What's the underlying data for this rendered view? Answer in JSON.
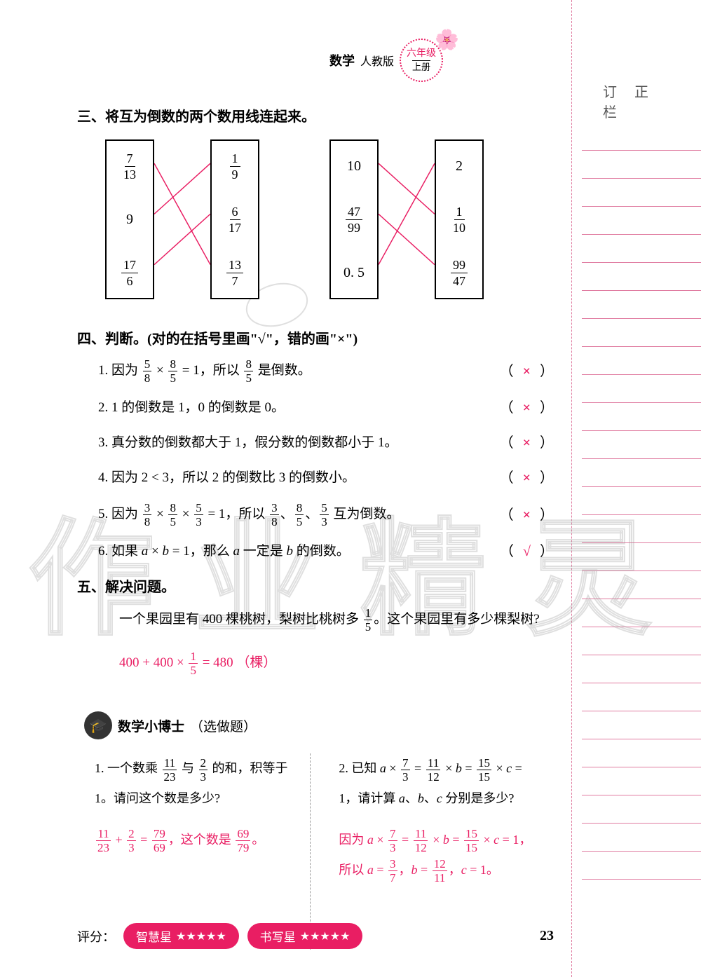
{
  "header": {
    "subject": "数学",
    "version": "人教版",
    "grade": "六年级",
    "volume": "上册"
  },
  "correction_label": "订 正 栏",
  "section3": {
    "title": "三、将互为倒数的两个数用线连起来。",
    "group1": {
      "left": [
        {
          "n": "7",
          "d": "13"
        },
        {
          "v": "9"
        },
        {
          "n": "17",
          "d": "6"
        }
      ],
      "right": [
        {
          "n": "1",
          "d": "9"
        },
        {
          "n": "6",
          "d": "17"
        },
        {
          "n": "13",
          "d": "7"
        }
      ],
      "lines": [
        [
          0,
          2
        ],
        [
          1,
          0
        ],
        [
          2,
          1
        ]
      ],
      "line_color": "#e91e63"
    },
    "group2": {
      "left": [
        {
          "v": "10"
        },
        {
          "n": "47",
          "d": "99"
        },
        {
          "v": "0. 5"
        }
      ],
      "right": [
        {
          "v": "2"
        },
        {
          "n": "1",
          "d": "10"
        },
        {
          "n": "99",
          "d": "47"
        }
      ],
      "lines": [
        [
          0,
          1
        ],
        [
          1,
          2
        ],
        [
          2,
          0
        ]
      ],
      "line_color": "#e91e63"
    }
  },
  "section4": {
    "title": "四、判断。(对的在括号里画\"√\"，错的画\"×\")",
    "items": [
      {
        "q": "1. 因为 <f>5|8</f> × <f>8|5</f> = 1，所以 <f>8|5</f> 是倒数。",
        "a": "×"
      },
      {
        "q": "2. 1 的倒数是 1，0 的倒数是 0。",
        "a": "×"
      },
      {
        "q": "3. 真分数的倒数都大于 1，假分数的倒数都小于 1。",
        "a": "×"
      },
      {
        "q": "4. 因为 2 < 3，所以 2 的倒数比 3 的倒数小。",
        "a": "×"
      },
      {
        "q": "5. 因为 <f>3|8</f> × <f>8|5</f> × <f>5|3</f> = 1，所以 <f>3|8</f>、<f>8|5</f>、<f>5|3</f> 互为倒数。",
        "a": "×"
      },
      {
        "q": "6. 如果 <i>a</i> × <i>b</i> = 1，那么 <i>a</i> 一定是 <i>b</i> 的倒数。",
        "a": "√"
      }
    ]
  },
  "section5": {
    "title": "五、解决问题。",
    "problem": "一个果园里有 400 棵桃树，梨树比桃树多 <f>1|5</f>。这个果园里有多少棵梨树?",
    "answer": "400 + 400 × <f>1|5</f> = 480 （棵）"
  },
  "doctor": {
    "title": "数学小博士",
    "subtitle": "（选做题）",
    "col1": {
      "q": "1. 一个数乘 <f>11|23</f> 与 <f>2|3</f> 的和，积等于 1。请问这个数是多少?",
      "a": "<f>11|23</f> + <f>2|3</f> = <f>79|69</f>，这个数是 <f>69|79</f>。"
    },
    "col2": {
      "q": "2. 已知 <i>a</i> × <f>7|3</f> = <f>11|12</f> × <i>b</i> = <f>15|15</f> × <i>c</i> = 1，请计算 <i>a</i>、<i>b</i>、<i>c</i> 分别是多少?",
      "a1": "因为 <i>a</i> × <f>7|3</f> = <f>11|12</f> × <i>b</i> = <f>15|15</f> × <i>c</i> = 1，",
      "a2": "所以 <i>a</i> = <f>3|7</f>，<i>b</i> = <f>12|11</f>，<i>c</i> = 1。"
    }
  },
  "footer": {
    "score_label": "评分：",
    "wisdom": "智慧星",
    "writing": "书写星",
    "stars": "★★★★★",
    "page": "23"
  },
  "watermark": "作业精灵",
  "colors": {
    "accent": "#e91e63",
    "rule": "#e07ba0"
  }
}
